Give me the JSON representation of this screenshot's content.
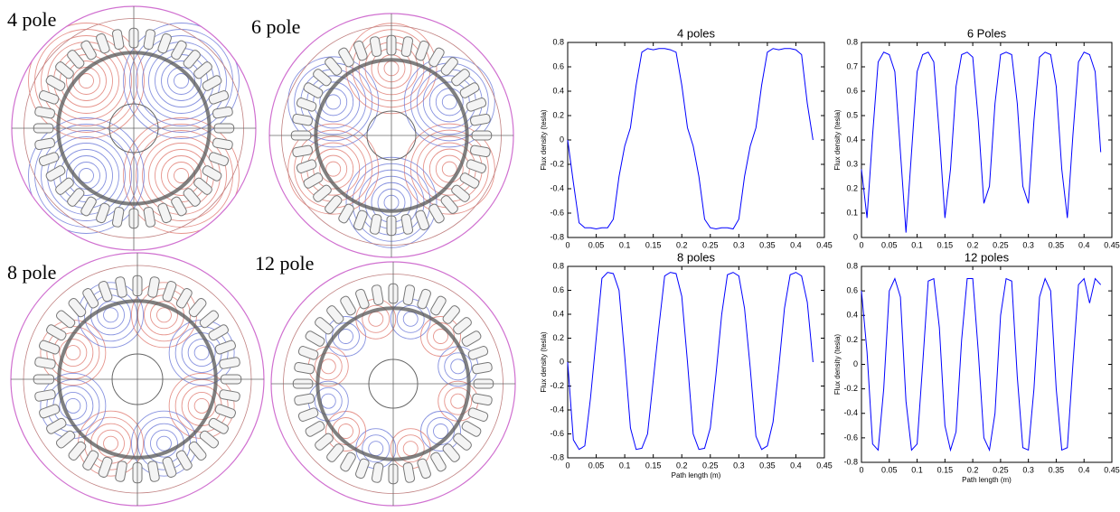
{
  "panels": [
    {
      "label": "4 pole",
      "poles": 4
    },
    {
      "label": "6 pole",
      "poles": 6
    },
    {
      "label": "8 pole",
      "poles": 8
    },
    {
      "label": "12 pole",
      "poles": 12
    }
  ],
  "chart_data": [
    {
      "type": "line",
      "title": "4 poles",
      "y_label": "Flux density (tesla)",
      "color": "#0000ff",
      "xlim": [
        0,
        0.45
      ],
      "xticks": [
        0,
        0.05,
        0.1,
        0.15,
        0.2,
        0.25,
        0.3,
        0.35,
        0.4,
        0.45
      ],
      "ylim": [
        -0.8,
        0.8
      ],
      "yticks": [
        -0.8,
        -0.6,
        -0.4,
        -0.2,
        0,
        0.2,
        0.4,
        0.6,
        0.8
      ],
      "x": [
        0,
        0.01,
        0.02,
        0.03,
        0.04,
        0.05,
        0.06,
        0.07,
        0.08,
        0.09,
        0.1,
        0.11,
        0.12,
        0.13,
        0.14,
        0.15,
        0.16,
        0.17,
        0.18,
        0.19,
        0.2,
        0.21,
        0.22,
        0.23,
        0.24,
        0.25,
        0.26,
        0.27,
        0.28,
        0.29,
        0.3,
        0.31,
        0.32,
        0.33,
        0.34,
        0.35,
        0.36,
        0.37,
        0.38,
        0.39,
        0.4,
        0.41,
        0.42,
        0.43
      ],
      "values": [
        0,
        -0.35,
        -0.68,
        -0.72,
        -0.72,
        -0.73,
        -0.72,
        -0.72,
        -0.65,
        -0.3,
        -0.05,
        0.1,
        0.45,
        0.72,
        0.75,
        0.74,
        0.75,
        0.75,
        0.74,
        0.72,
        0.45,
        0.1,
        -0.05,
        -0.3,
        -0.65,
        -0.72,
        -0.73,
        -0.72,
        -0.72,
        -0.73,
        -0.65,
        -0.3,
        -0.05,
        0.1,
        0.45,
        0.72,
        0.75,
        0.74,
        0.75,
        0.75,
        0.74,
        0.7,
        0.3,
        0
      ]
    },
    {
      "type": "line",
      "title": "6 Poles",
      "y_label": "Flux density (tesla)",
      "color": "#0000ff",
      "xlim": [
        0,
        0.45
      ],
      "xticks": [
        0,
        0.05,
        0.1,
        0.15,
        0.2,
        0.25,
        0.3,
        0.35,
        0.4,
        0.45
      ],
      "ylim": [
        0,
        0.8
      ],
      "yticks": [
        0,
        0.1,
        0.2,
        0.3,
        0.4,
        0.5,
        0.6,
        0.7,
        0.8
      ],
      "x": [
        0,
        0.01,
        0.02,
        0.03,
        0.04,
        0.05,
        0.06,
        0.07,
        0.08,
        0.09,
        0.1,
        0.11,
        0.12,
        0.13,
        0.14,
        0.15,
        0.16,
        0.17,
        0.18,
        0.19,
        0.2,
        0.21,
        0.22,
        0.23,
        0.24,
        0.25,
        0.26,
        0.27,
        0.28,
        0.29,
        0.3,
        0.31,
        0.32,
        0.33,
        0.34,
        0.35,
        0.36,
        0.37,
        0.38,
        0.39,
        0.4,
        0.41,
        0.42,
        0.43
      ],
      "values": [
        0.28,
        0.08,
        0.42,
        0.72,
        0.76,
        0.75,
        0.68,
        0.35,
        0.02,
        0.35,
        0.68,
        0.75,
        0.76,
        0.72,
        0.42,
        0.08,
        0.28,
        0.62,
        0.75,
        0.76,
        0.74,
        0.48,
        0.14,
        0.21,
        0.55,
        0.75,
        0.76,
        0.75,
        0.55,
        0.21,
        0.14,
        0.48,
        0.74,
        0.76,
        0.75,
        0.62,
        0.28,
        0.08,
        0.42,
        0.72,
        0.76,
        0.75,
        0.68,
        0.35
      ]
    },
    {
      "type": "line",
      "title": "8 poles",
      "y_label": "Flux density (tesla)",
      "x_label": "Path length (m)",
      "color": "#0000ff",
      "xlim": [
        0,
        0.45
      ],
      "xticks": [
        0,
        0.05,
        0.1,
        0.15,
        0.2,
        0.25,
        0.3,
        0.35,
        0.4,
        0.45
      ],
      "ylim": [
        -0.8,
        0.8
      ],
      "yticks": [
        -0.8,
        -0.6,
        -0.4,
        -0.2,
        0,
        0.2,
        0.4,
        0.6,
        0.8
      ],
      "x": [
        0,
        0.01,
        0.02,
        0.03,
        0.04,
        0.05,
        0.06,
        0.07,
        0.08,
        0.09,
        0.1,
        0.11,
        0.12,
        0.13,
        0.14,
        0.15,
        0.16,
        0.17,
        0.18,
        0.19,
        0.2,
        0.21,
        0.22,
        0.23,
        0.24,
        0.25,
        0.26,
        0.27,
        0.28,
        0.29,
        0.3,
        0.31,
        0.32,
        0.33,
        0.34,
        0.35,
        0.36,
        0.37,
        0.38,
        0.39,
        0.4,
        0.41,
        0.42,
        0.43
      ],
      "values": [
        0,
        -0.65,
        -0.73,
        -0.7,
        -0.3,
        0.2,
        0.7,
        0.75,
        0.74,
        0.6,
        0.05,
        -0.55,
        -0.73,
        -0.72,
        -0.6,
        -0.15,
        0.3,
        0.72,
        0.75,
        0.74,
        0.55,
        0,
        -0.6,
        -0.73,
        -0.72,
        -0.55,
        -0.1,
        0.4,
        0.73,
        0.75,
        0.72,
        0.45,
        -0.05,
        -0.62,
        -0.73,
        -0.7,
        -0.5,
        -0.05,
        0.45,
        0.73,
        0.75,
        0.72,
        0.5,
        0
      ]
    },
    {
      "type": "line",
      "title": "12 poles",
      "y_label": "Flux density (tesla)",
      "x_label": "Path length (m)",
      "color": "#0000ff",
      "xlim": [
        0,
        0.45
      ],
      "xticks": [
        0,
        0.05,
        0.1,
        0.15,
        0.2,
        0.25,
        0.3,
        0.35,
        0.4,
        0.45
      ],
      "ylim": [
        -0.8,
        0.8
      ],
      "yticks": [
        -0.8,
        -0.6,
        -0.4,
        -0.2,
        0,
        0.2,
        0.4,
        0.6,
        0.8
      ],
      "x": [
        0,
        0.01,
        0.02,
        0.03,
        0.04,
        0.05,
        0.06,
        0.07,
        0.08,
        0.09,
        0.1,
        0.11,
        0.12,
        0.13,
        0.14,
        0.15,
        0.16,
        0.17,
        0.18,
        0.19,
        0.2,
        0.21,
        0.22,
        0.23,
        0.24,
        0.25,
        0.26,
        0.27,
        0.28,
        0.29,
        0.3,
        0.31,
        0.32,
        0.33,
        0.34,
        0.35,
        0.36,
        0.37,
        0.38,
        0.39,
        0.4,
        0.41,
        0.42,
        0.43
      ],
      "values": [
        0.6,
        0.1,
        -0.65,
        -0.7,
        -0.2,
        0.6,
        0.7,
        0.55,
        -0.3,
        -0.7,
        -0.65,
        0,
        0.68,
        0.7,
        0.3,
        -0.5,
        -0.7,
        -0.55,
        0.2,
        0.7,
        0.7,
        0.1,
        -0.6,
        -0.7,
        -0.4,
        0.4,
        0.7,
        0.68,
        -0.1,
        -0.68,
        -0.7,
        -0.2,
        0.55,
        0.7,
        0.6,
        -0.2,
        -0.7,
        -0.68,
        0,
        0.65,
        0.7,
        0.5,
        0.7,
        0.65
      ]
    }
  ]
}
